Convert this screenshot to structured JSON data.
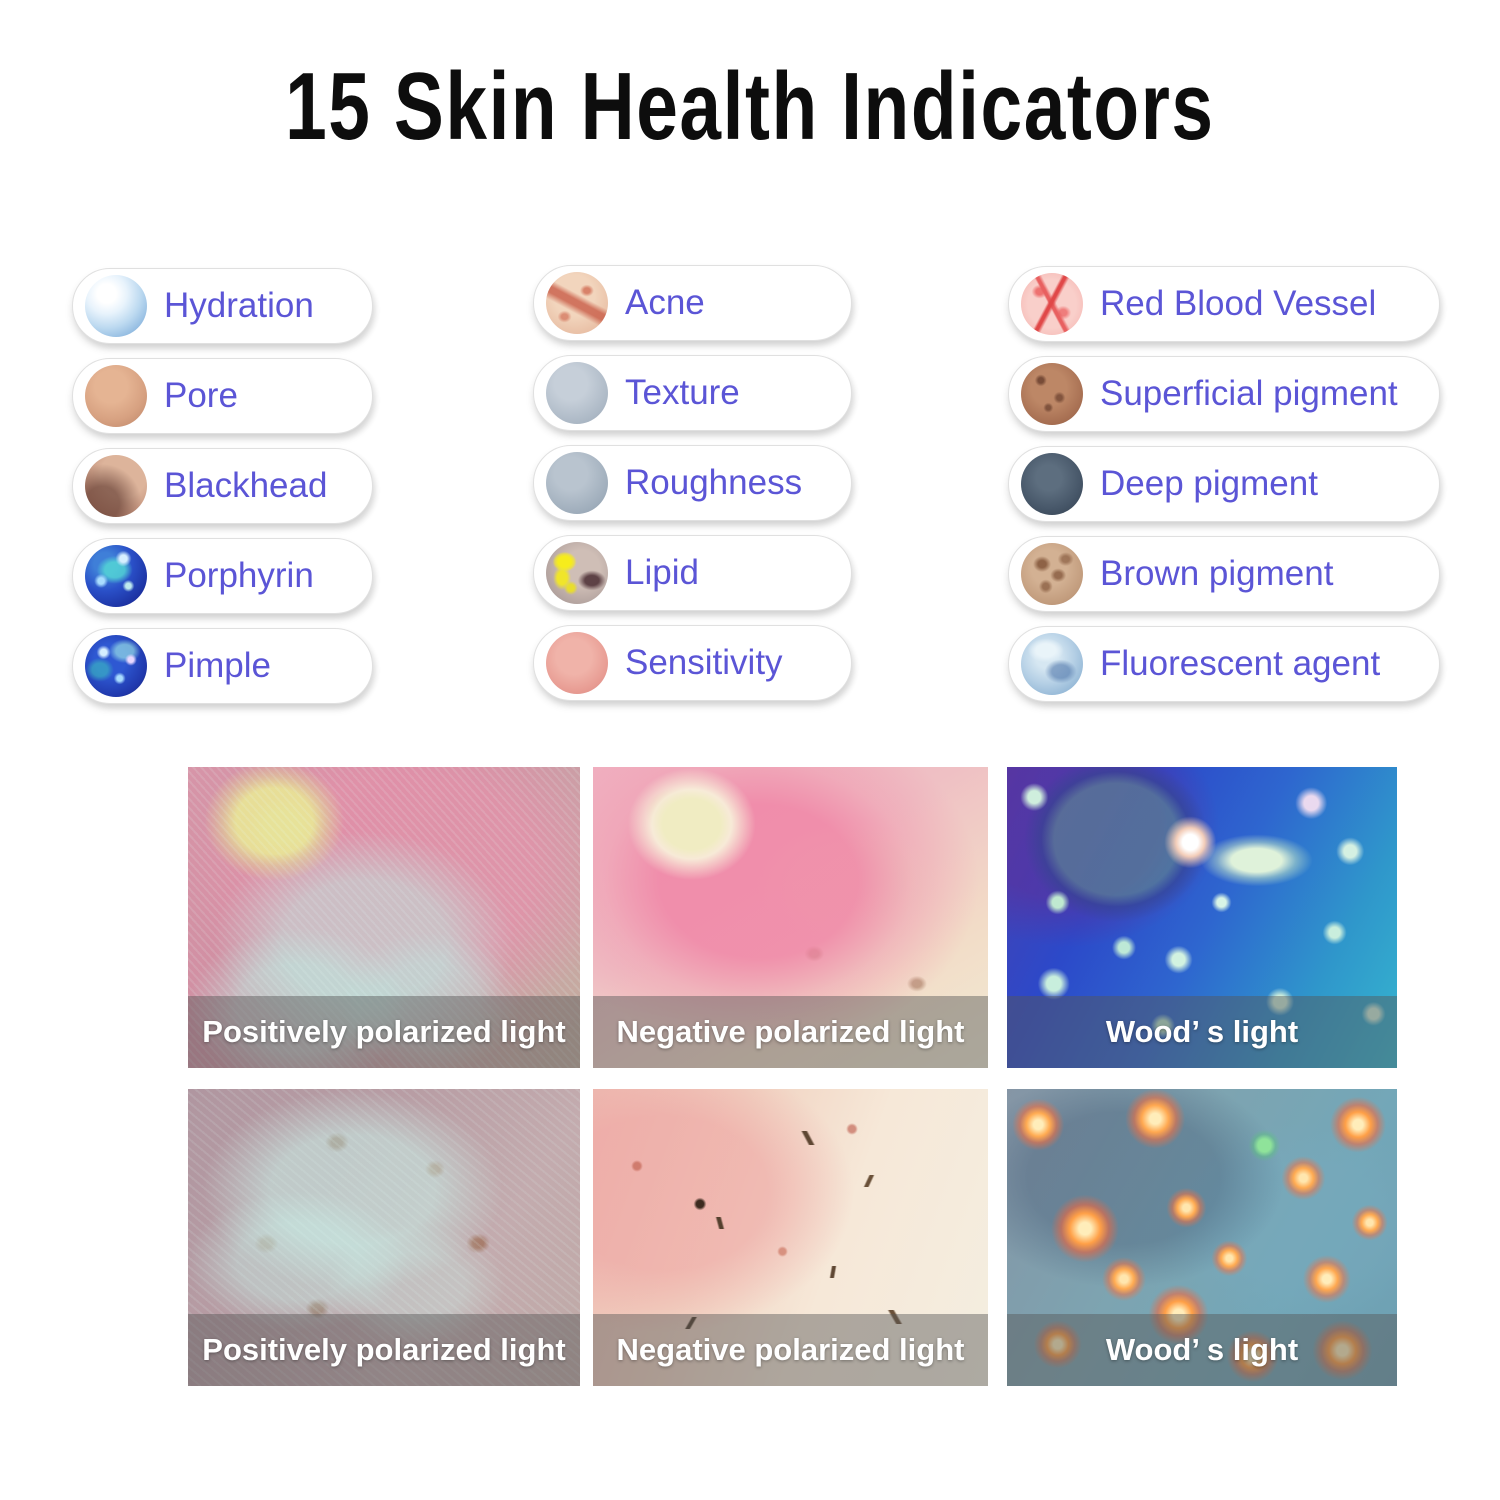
{
  "title": "15 Skin Health Indicators",
  "styles": {
    "label_color": "#5b55d6",
    "title_color": "#0d0d0d",
    "caption_text_color": "#ffffff",
    "caption_band_color": "rgba(86,86,86,0.45)",
    "pill_background": "#ffffff",
    "page_background": "#ffffff"
  },
  "columns": [
    {
      "items": [
        {
          "label": "Hydration",
          "icon": "hydration-sample-icon"
        },
        {
          "label": "Pore",
          "icon": "pore-sample-icon"
        },
        {
          "label": "Blackhead",
          "icon": "blackhead-sample-icon"
        },
        {
          "label": "Porphyrin",
          "icon": "porphyrin-sample-icon"
        },
        {
          "label": "Pimple",
          "icon": "pimple-sample-icon"
        }
      ]
    },
    {
      "items": [
        {
          "label": "Acne",
          "icon": "acne-sample-icon"
        },
        {
          "label": "Texture",
          "icon": "texture-sample-icon"
        },
        {
          "label": "Roughness",
          "icon": "roughness-sample-icon"
        },
        {
          "label": "Lipid",
          "icon": "lipid-sample-icon"
        },
        {
          "label": "Sensitivity",
          "icon": "sensitivity-sample-icon"
        }
      ]
    },
    {
      "items": [
        {
          "label": "Red Blood Vessel",
          "icon": "red-blood-vessel-sample-icon"
        },
        {
          "label": "Superficial pigment",
          "icon": "superficial-pigment-sample-icon"
        },
        {
          "label": "Deep pigment",
          "icon": "deep-pigment-sample-icon"
        },
        {
          "label": "Brown pigment",
          "icon": "brown-pigment-sample-icon"
        },
        {
          "label": "Fluorescent agent",
          "icon": "fluorescent-agent-sample-icon"
        }
      ]
    }
  ],
  "photo_rows": [
    {
      "photos": [
        {
          "caption": "Positively polarized light"
        },
        {
          "caption": "Negative polarized light"
        },
        {
          "caption": "Wood’ s light"
        }
      ]
    },
    {
      "photos": [
        {
          "caption": "Positively polarized light"
        },
        {
          "caption": "Negative polarized light"
        },
        {
          "caption": "Wood’ s light"
        }
      ]
    }
  ]
}
